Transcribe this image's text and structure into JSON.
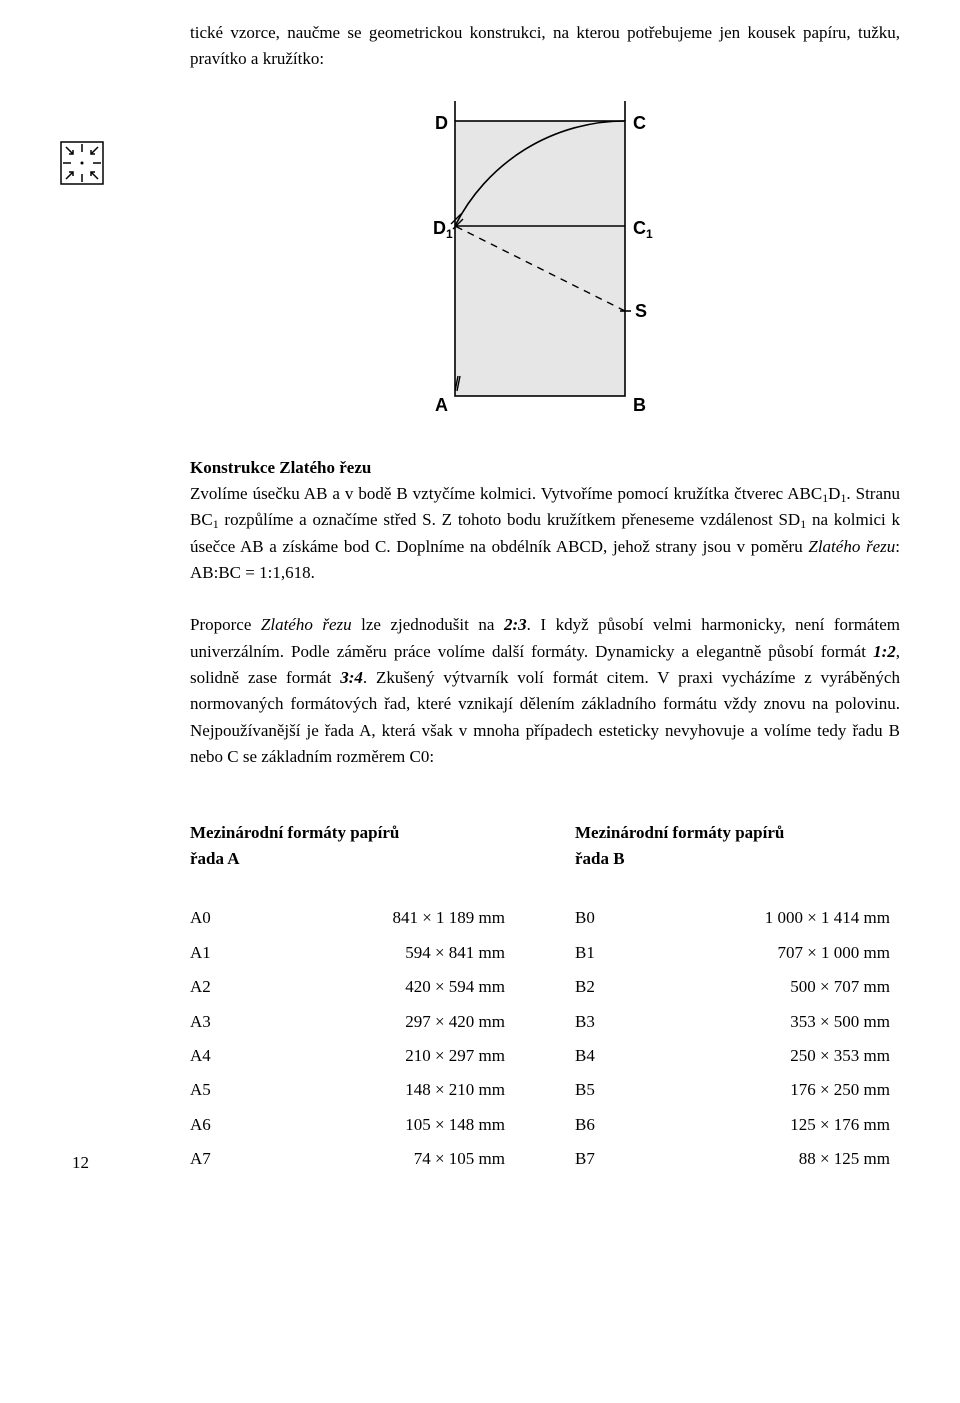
{
  "intro": "tické vzorce, naučme se geometrickou konstrukci, na kterou potřebujeme jen kousek papíru, tužku, pravítko a kružítko:",
  "diagram": {
    "labels": {
      "A": "A",
      "B": "B",
      "C": "C",
      "D": "D",
      "C1": "C",
      "C1sub": "1",
      "D1": "D",
      "D1sub": "1",
      "S": "S"
    },
    "fill": "#e6e6e6",
    "stroke": "#000000"
  },
  "heading1": "Konstrukce Zlatého řezu",
  "p1a": "Zvolíme úsečku AB a v bodě B vztyčíme kolmici. Vytvoříme pomocí kružítka čtverec ABC",
  "p1b": "D",
  "sub1": "1",
  "p1c": ". Stranu BC",
  "p1d": " rozpůlíme a označíme střed S. Z tohoto bodu kružítkem přeneseme vzdálenost SD",
  "p1e": " na kolmici k úsečce AB a získáme bod C. Doplníme na obdélník ABCD, jehož strany jsou v poměru ",
  "zr": "Zlatého řezu",
  "p1f": ": AB:BC =  1:1,618.",
  "p2a": "Proporce ",
  "p2b": " lze zjednodušit na ",
  "r23": "2:3",
  "p2c": ". I když působí velmi harmonicky, není formátem univerzálním. Podle záměru práce volíme další formáty. Dynamicky a elegantně působí formát ",
  "r12": "1:2",
  "p2d": ", solidně zase formát ",
  "r34": "3:4",
  "p2e": ". Zkušený výtvarník volí formát citem. V praxi vycházíme z vyráběných normovaných formátových řad, které vznikají dělením základního formátu vždy znovu na polovinu. Nejpoužívanější je řada A, která však v mnoha případech esteticky nevyhovuje a volíme tedy řadu B nebo C se základním rozměrem C0:",
  "tables": {
    "a_head1": "Mezinárodní formáty papírů",
    "a_head2": "řada A",
    "b_head1": "Mezinárodní formáty papírů",
    "b_head2": "řada B",
    "rowsA": [
      {
        "code": "A0",
        "val": "841 × 1 189 mm"
      },
      {
        "code": "A1",
        "val": "594 × 841 mm"
      },
      {
        "code": "A2",
        "val": "420 × 594 mm"
      },
      {
        "code": "A3",
        "val": "297 × 420 mm"
      },
      {
        "code": "A4",
        "val": "210 × 297 mm"
      },
      {
        "code": "A5",
        "val": "148 × 210 mm"
      },
      {
        "code": "A6",
        "val": "105 × 148 mm"
      },
      {
        "code": "A7",
        "val": "74 × 105 mm"
      }
    ],
    "rowsB": [
      {
        "code": "B0",
        "val": "1 000 × 1 414 mm"
      },
      {
        "code": "B1",
        "val": "707 × 1 000 mm"
      },
      {
        "code": "B2",
        "val": "500 × 707 mm"
      },
      {
        "code": "B3",
        "val": "353 × 500 mm"
      },
      {
        "code": "B4",
        "val": "250 × 353 mm"
      },
      {
        "code": "B5",
        "val": "176 × 250 mm"
      },
      {
        "code": "B6",
        "val": "125 × 176 mm"
      },
      {
        "code": "B7",
        "val": "88 × 125 mm"
      }
    ]
  },
  "page_num": "12",
  "icon": {
    "stroke": "#000",
    "bg": "#fff"
  }
}
